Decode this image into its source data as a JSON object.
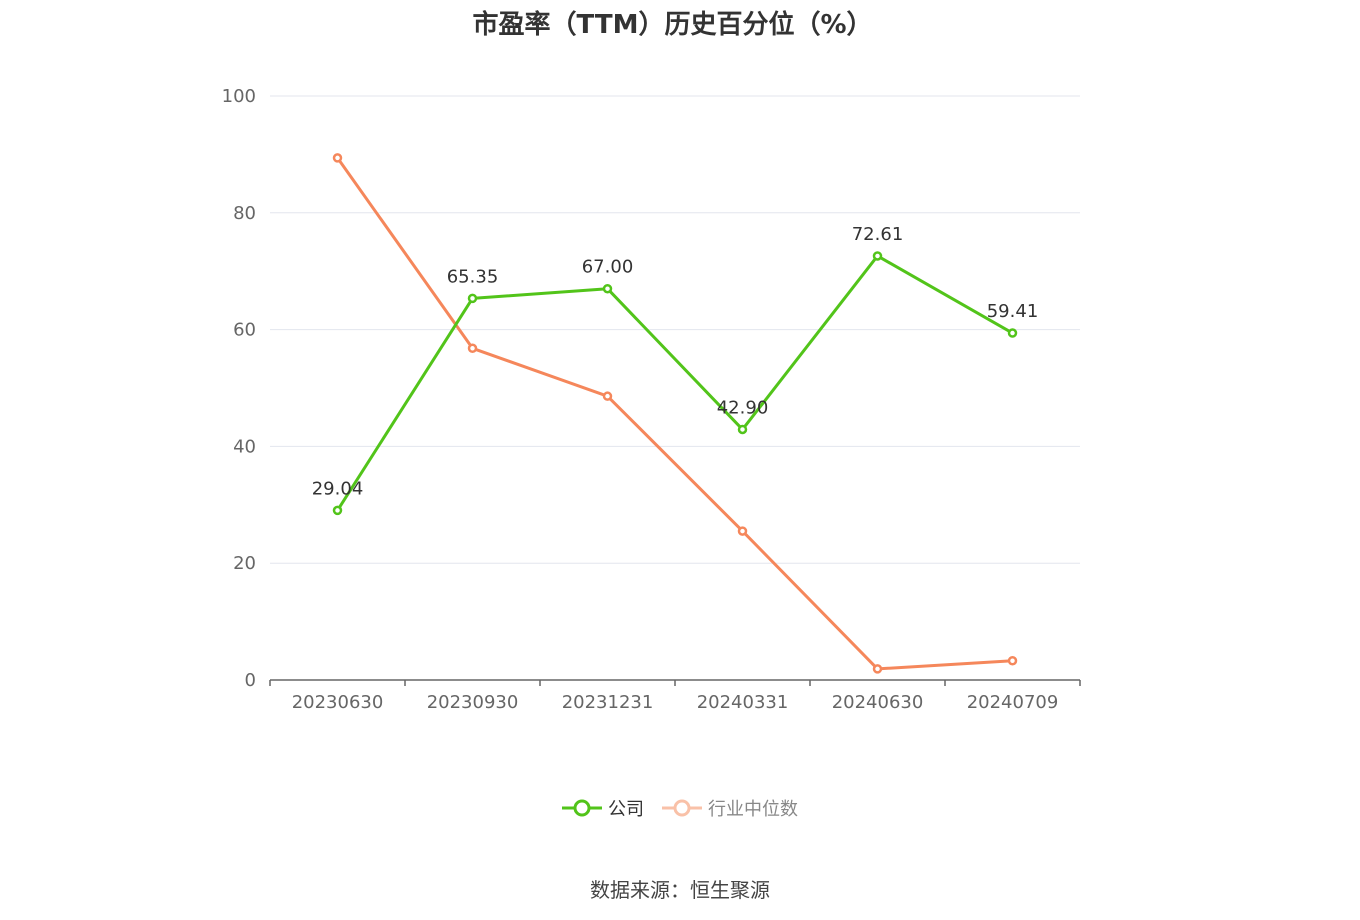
{
  "chart_data": {
    "type": "line",
    "title": "市盈率（TTM）历史百分位（%）",
    "categories": [
      "20230630",
      "20230930",
      "20231231",
      "20240331",
      "20240630",
      "20240709"
    ],
    "ylim": [
      0,
      100
    ],
    "yticks": [
      0,
      20,
      40,
      60,
      80,
      100
    ],
    "grid": true,
    "legend_position": "bottom",
    "series": [
      {
        "name": "公司",
        "color": "#52c41a",
        "values": [
          29.04,
          65.35,
          67.0,
          42.9,
          72.61,
          59.41
        ],
        "labels": [
          "29.04",
          "65.35",
          "67.00",
          "42.90",
          "72.61",
          "59.41"
        ]
      },
      {
        "name": "行业中位数",
        "color": "#f5875b",
        "values": [
          89.4,
          56.8,
          48.6,
          25.5,
          1.9,
          3.3
        ]
      }
    ]
  },
  "source_text": "数据来源：恒生聚源"
}
